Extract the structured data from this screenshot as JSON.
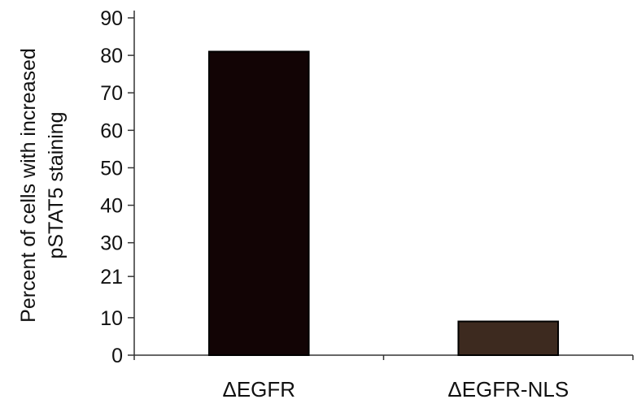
{
  "chart_data": {
    "type": "bar",
    "categories": [
      "ΔEGFR",
      "ΔEGFR-NLS"
    ],
    "values": [
      81,
      9
    ],
    "bar_colors": [
      "#120405",
      "#3d2a1f"
    ],
    "bar_edge_color": "#000000",
    "title": "",
    "xlabel": "",
    "ylabel": [
      "Percent of cells with increased",
      "pSTAT5 staining"
    ],
    "ylim": [
      0,
      90
    ],
    "y_ticks": [
      0,
      10,
      21,
      30,
      40,
      50,
      60,
      70,
      80,
      90
    ],
    "y_tick_labels": [
      "0",
      "10",
      "21",
      "30",
      "40",
      "50",
      "60",
      "70",
      "80",
      "90"
    ],
    "grid": false,
    "legend": "none"
  }
}
